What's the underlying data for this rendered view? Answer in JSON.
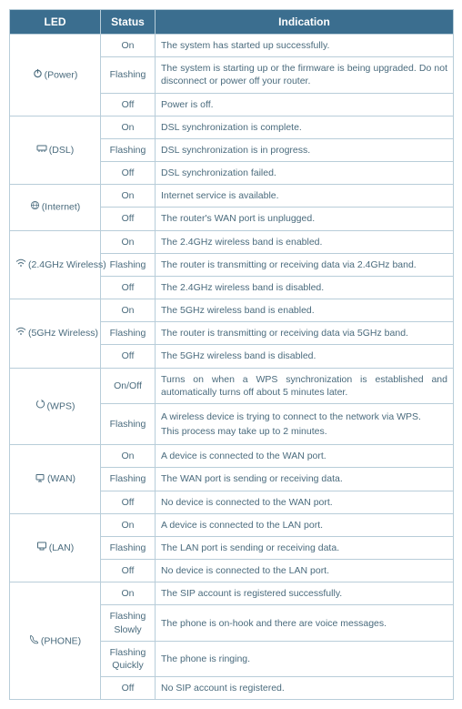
{
  "colors": {
    "header_bg": "#3b6e8f",
    "header_text": "#ffffff",
    "border": "#b8cdd9",
    "cell_text": "#4a6b7d"
  },
  "headers": {
    "led": "LED",
    "status": "Status",
    "indication": "Indication"
  },
  "groups": [
    {
      "led_label": "(Power)",
      "icon": "power",
      "rows": [
        {
          "status": "On",
          "indication": "The system has started up successfully."
        },
        {
          "status": "Flashing",
          "indication": "The system is starting up or the firmware is being upgraded. Do not disconnect or power off your router.",
          "justify": true
        },
        {
          "status": "Off",
          "indication": "Power is off."
        }
      ]
    },
    {
      "led_label": "(DSL)",
      "icon": "dsl",
      "rows": [
        {
          "status": "On",
          "indication": "DSL synchronization is complete."
        },
        {
          "status": "Flashing",
          "indication": "DSL synchronization is in progress."
        },
        {
          "status": "Off",
          "indication": "DSL synchronization failed."
        }
      ]
    },
    {
      "led_label": "(Internet)",
      "icon": "internet",
      "rows": [
        {
          "status": "On",
          "indication": "Internet service is available."
        },
        {
          "status": "Off",
          "indication": "The router's WAN port is unplugged."
        }
      ]
    },
    {
      "led_label": "(2.4GHz Wireless)",
      "icon": "wifi",
      "rows": [
        {
          "status": "On",
          "indication": "The 2.4GHz wireless band is enabled."
        },
        {
          "status": "Flashing",
          "indication": "The router is transmitting or receiving data via 2.4GHz band."
        },
        {
          "status": "Off",
          "indication": "The 2.4GHz wireless band is disabled."
        }
      ]
    },
    {
      "led_label": "(5GHz Wireless)",
      "icon": "wifi",
      "rows": [
        {
          "status": "On",
          "indication": "The 5GHz wireless band is enabled."
        },
        {
          "status": "Flashing",
          "indication": "The router is transmitting or receiving data via 5GHz band."
        },
        {
          "status": "Off",
          "indication": "The 5GHz wireless band is disabled."
        }
      ]
    },
    {
      "led_label": "(WPS)",
      "icon": "wps",
      "rows": [
        {
          "status": "On/Off",
          "indication": "Turns on when a WPS synchronization is established and automatically turns off about 5 minutes later.",
          "justify": true
        },
        {
          "status": "Flashing",
          "indication_lines": [
            "A wireless device is trying to connect to the network via WPS.",
            "This process may take up to 2 minutes."
          ]
        }
      ]
    },
    {
      "led_label": "(WAN)",
      "icon": "wan",
      "rows": [
        {
          "status": "On",
          "indication": "A device is connected to the WAN port."
        },
        {
          "status": "Flashing",
          "indication": "The WAN port is sending or receiving data."
        },
        {
          "status": "Off",
          "indication": "No device is connected to the WAN port."
        }
      ]
    },
    {
      "led_label": "(LAN)",
      "icon": "lan",
      "rows": [
        {
          "status": "On",
          "indication": "A device is connected to the LAN port."
        },
        {
          "status": "Flashing",
          "indication": "The LAN port is sending or receiving data."
        },
        {
          "status": "Off",
          "indication": "No device is connected to the LAN port."
        }
      ]
    },
    {
      "led_label": "(PHONE)",
      "icon": "phone",
      "rows": [
        {
          "status": "On",
          "indication": "The SIP account is registered successfully."
        },
        {
          "status": "Flashing Slowly",
          "indication": "The phone is on-hook and there are voice messages."
        },
        {
          "status": "Flashing Quickly",
          "indication": "The phone is ringing."
        },
        {
          "status": "Off",
          "indication": "No SIP account is registered."
        }
      ]
    }
  ]
}
